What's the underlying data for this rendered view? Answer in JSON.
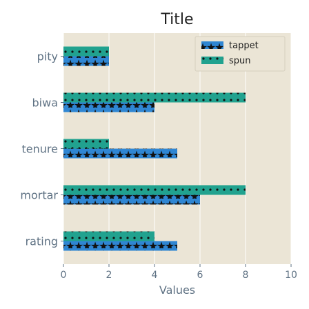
{
  "chart_data": {
    "type": "bar",
    "orientation": "horizontal",
    "title": "Title",
    "xlabel": "Values",
    "ylabel": "",
    "xlim": [
      0,
      10
    ],
    "xticks": [
      "0",
      "2",
      "4",
      "6",
      "8",
      "10"
    ],
    "categories": [
      "pity",
      "biwa",
      "tenure",
      "mortar",
      "rating"
    ],
    "series": [
      {
        "name": "tappet",
        "values": [
          2,
          4,
          5,
          6,
          5
        ],
        "color": "#2f86d3",
        "pattern": "stars"
      },
      {
        "name": "spun",
        "values": [
          2,
          8,
          2,
          8,
          4
        ],
        "color": "#21a28f",
        "pattern": "dots"
      }
    ],
    "legend_position": "top-right",
    "grid": true,
    "background": "#ebe5d6"
  }
}
